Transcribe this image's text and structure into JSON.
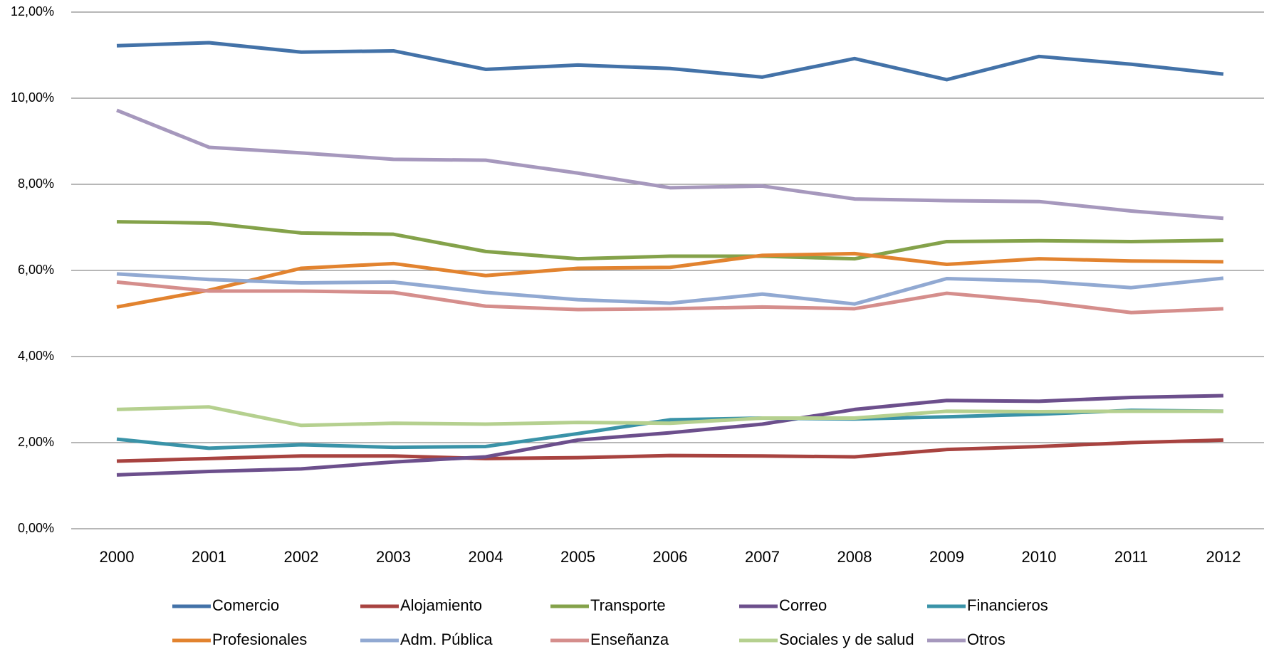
{
  "chart_data": {
    "type": "line",
    "categories": [
      "2000",
      "2001",
      "2002",
      "2003",
      "2004",
      "2005",
      "2006",
      "2007",
      "2008",
      "2009",
      "2010",
      "2011",
      "2012"
    ],
    "series": [
      {
        "name": "Comercio",
        "color": "#4372a8",
        "values": [
          11.22,
          11.29,
          11.07,
          11.1,
          10.67,
          10.77,
          10.69,
          10.49,
          10.92,
          10.43,
          10.97,
          10.79,
          10.56
        ]
      },
      {
        "name": "Alojamiento",
        "color": "#a84340",
        "values": [
          1.57,
          1.63,
          1.69,
          1.69,
          1.63,
          1.65,
          1.7,
          1.69,
          1.67,
          1.84,
          1.91,
          2.0,
          2.06
        ]
      },
      {
        "name": "Transporte",
        "color": "#84a24a",
        "values": [
          7.13,
          7.1,
          6.87,
          6.84,
          6.44,
          6.27,
          6.33,
          6.33,
          6.27,
          6.67,
          6.69,
          6.67,
          6.7
        ]
      },
      {
        "name": "Correo",
        "color": "#6c4f8c",
        "values": [
          1.25,
          1.33,
          1.39,
          1.55,
          1.67,
          2.06,
          2.23,
          2.43,
          2.77,
          2.98,
          2.96,
          3.05,
          3.09
        ]
      },
      {
        "name": "Financieros",
        "color": "#3a93a8",
        "values": [
          2.08,
          1.87,
          1.95,
          1.89,
          1.91,
          2.21,
          2.53,
          2.57,
          2.55,
          2.6,
          2.66,
          2.75,
          2.73
        ]
      },
      {
        "name": "Profesionales",
        "color": "#e2832f",
        "values": [
          5.15,
          5.54,
          6.05,
          6.16,
          5.88,
          6.05,
          6.07,
          6.35,
          6.39,
          6.14,
          6.27,
          6.22,
          6.2
        ]
      },
      {
        "name": "Adm. Pública",
        "color": "#91a9d2",
        "values": [
          5.92,
          5.79,
          5.71,
          5.73,
          5.49,
          5.32,
          5.24,
          5.45,
          5.22,
          5.81,
          5.75,
          5.6,
          5.82
        ]
      },
      {
        "name": "Enseñanza",
        "color": "#d58e8c",
        "values": [
          5.73,
          5.52,
          5.52,
          5.49,
          5.17,
          5.09,
          5.11,
          5.15,
          5.11,
          5.47,
          5.28,
          5.02,
          5.11
        ]
      },
      {
        "name": "Sociales y de salud",
        "color": "#b5d08f",
        "values": [
          2.77,
          2.83,
          2.4,
          2.45,
          2.43,
          2.47,
          2.45,
          2.57,
          2.57,
          2.73,
          2.72,
          2.73,
          2.73
        ]
      },
      {
        "name": "Otros",
        "color": "#a698bd",
        "values": [
          9.72,
          8.86,
          8.73,
          8.58,
          8.56,
          8.26,
          7.92,
          7.96,
          7.66,
          7.62,
          7.6,
          7.38,
          7.21
        ]
      }
    ],
    "ylim": [
      0,
      12
    ],
    "yticks": [
      {
        "value": 0,
        "label": "0,00%"
      },
      {
        "value": 2,
        "label": "2,00%"
      },
      {
        "value": 4,
        "label": "4,00%"
      },
      {
        "value": 6,
        "label": "6,00%"
      },
      {
        "value": 8,
        "label": "8,00%"
      },
      {
        "value": 10,
        "label": "10,00%"
      },
      {
        "value": 12,
        "label": "12,00%"
      }
    ],
    "grid": true
  }
}
